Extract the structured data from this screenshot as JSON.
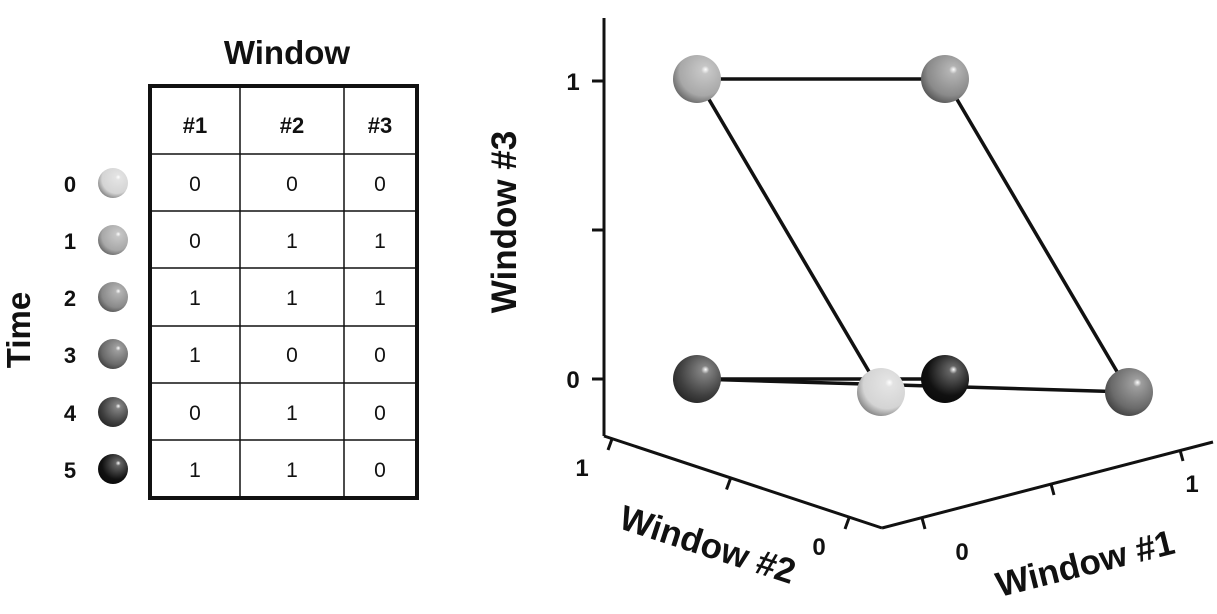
{
  "table": {
    "header": "Window",
    "row_axis_label": "Time",
    "columns": [
      "#1",
      "#2",
      "#3"
    ],
    "rows": [
      {
        "time": "0",
        "ball_color": "#d4d4d4",
        "values": [
          "0",
          "0",
          "0"
        ]
      },
      {
        "time": "1",
        "ball_color": "#a8a8a8",
        "values": [
          "0",
          "1",
          "1"
        ]
      },
      {
        "time": "2",
        "ball_color": "#8a8a8a",
        "values": [
          "1",
          "1",
          "1"
        ]
      },
      {
        "time": "3",
        "ball_color": "#6a6a6a",
        "values": [
          "1",
          "0",
          "0"
        ]
      },
      {
        "time": "4",
        "ball_color": "#3f3f3f",
        "values": [
          "0",
          "1",
          "0"
        ]
      },
      {
        "time": "5",
        "ball_color": "#111111",
        "values": [
          "1",
          "1",
          "0"
        ]
      }
    ]
  },
  "chart_data": {
    "type": "scatter",
    "projection": "3d",
    "x_axis": {
      "label": "Window #1",
      "ticks": [
        "0",
        "1"
      ],
      "range": [
        0,
        1
      ]
    },
    "y_axis": {
      "label": "Window #2",
      "ticks": [
        "0",
        "1"
      ],
      "range": [
        0,
        1
      ]
    },
    "z_axis": {
      "label": "Window #3",
      "ticks": [
        "0",
        "1"
      ],
      "range": [
        0,
        1
      ]
    },
    "points": [
      {
        "time": 0,
        "x": 0,
        "y": 0,
        "z": 0,
        "color": "#d4d4d4"
      },
      {
        "time": 1,
        "x": 0,
        "y": 1,
        "z": 1,
        "color": "#a8a8a8"
      },
      {
        "time": 2,
        "x": 1,
        "y": 1,
        "z": 1,
        "color": "#8a8a8a"
      },
      {
        "time": 3,
        "x": 1,
        "y": 0,
        "z": 0,
        "color": "#6a6a6a"
      },
      {
        "time": 4,
        "x": 0,
        "y": 1,
        "z": 0,
        "color": "#3f3f3f"
      },
      {
        "time": 5,
        "x": 1,
        "y": 1,
        "z": 0,
        "color": "#111111"
      }
    ],
    "connect_in_time_order": true
  }
}
